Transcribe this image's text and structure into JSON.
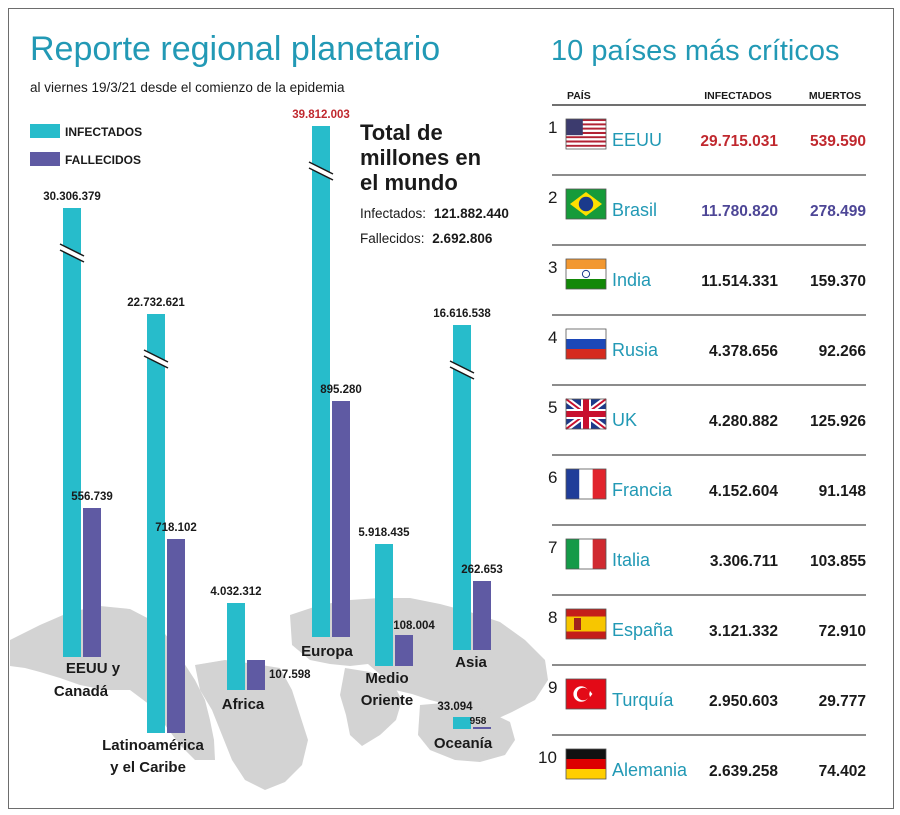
{
  "header": {
    "title": "Reporte regional planetario",
    "subtitle": "al viernes 19/3/21 desde el comienzo de la epidemia",
    "right_title": "10 países más críticos"
  },
  "legend": {
    "infected": "INFECTADOS",
    "deaths": "FALLECIDOS"
  },
  "totals": {
    "heading_lines": [
      "Total de",
      "millones en",
      "el mundo"
    ],
    "infected_label": "Infectados:",
    "infected_value": "121.882.440",
    "deaths_label": "Fallecidos:",
    "deaths_value": "2.692.806"
  },
  "colors": {
    "title": "#2299b5",
    "infected": "#27bccb",
    "deaths": "#5f5aa3",
    "highlight_red": "#c0282e",
    "highlight_purple": "#4d4696",
    "map": "#d3d3d3",
    "text": "#1a1a1a"
  },
  "chart_data": {
    "type": "bar",
    "series": [
      {
        "name": "INFECTADOS",
        "values": [
          30306379,
          22732621,
          4032312,
          39812003,
          5918435,
          16616538,
          33094
        ]
      },
      {
        "name": "FALLECIDOS",
        "values": [
          556739,
          718102,
          107598,
          895280,
          108004,
          262653,
          958
        ]
      }
    ],
    "regions": [
      {
        "label_lines": [
          "EEUU y",
          "Canadá"
        ],
        "infected": "30.306.379",
        "deaths": "556.739",
        "infected_broken": true
      },
      {
        "label_lines": [
          "Latinoamérica",
          "y el Caribe"
        ],
        "infected": "22.732.621",
        "deaths": "718.102",
        "infected_broken": true
      },
      {
        "label_lines": [
          "Africa"
        ],
        "infected": "4.032.312",
        "deaths": "107.598",
        "infected_broken": false
      },
      {
        "label_lines": [
          "Europa"
        ],
        "infected": "39.812.003",
        "deaths": "895.280",
        "infected_broken": true
      },
      {
        "label_lines": [
          "Medio",
          "Oriente"
        ],
        "infected": "5.918.435",
        "deaths": "108.004",
        "infected_broken": false
      },
      {
        "label_lines": [
          "Asia"
        ],
        "infected": "16.616.538",
        "deaths": "262.653",
        "infected_broken": true
      },
      {
        "label_lines": [
          "Oceanía"
        ],
        "infected": "33.094",
        "deaths": "958",
        "infected_broken": false
      }
    ]
  },
  "table": {
    "headers": {
      "country": "PAÍS",
      "infected": "INFECTADOS",
      "deaths": "MUERTOS"
    },
    "rows": [
      {
        "rank": "1",
        "flag": "usa-flag-icon",
        "country": "EEUU",
        "infected": "29.715.031",
        "deaths": "539.590"
      },
      {
        "rank": "2",
        "flag": "brazil-flag-icon",
        "country": "Brasil",
        "infected": "11.780.820",
        "deaths": "278.499"
      },
      {
        "rank": "3",
        "flag": "india-flag-icon",
        "country": "India",
        "infected": "11.514.331",
        "deaths": "159.370"
      },
      {
        "rank": "4",
        "flag": "russia-flag-icon",
        "country": "Rusia",
        "infected": "4.378.656",
        "deaths": "92.266"
      },
      {
        "rank": "5",
        "flag": "uk-flag-icon",
        "country": "UK",
        "infected": "4.280.882",
        "deaths": "125.926"
      },
      {
        "rank": "6",
        "flag": "france-flag-icon",
        "country": "Francia",
        "infected": "4.152.604",
        "deaths": "91.148"
      },
      {
        "rank": "7",
        "flag": "italy-flag-icon",
        "country": "Italia",
        "infected": "3.306.711",
        "deaths": "103.855"
      },
      {
        "rank": "8",
        "flag": "spain-flag-icon",
        "country": "España",
        "infected": "3.121.332",
        "deaths": "72.910"
      },
      {
        "rank": "9",
        "flag": "turkey-flag-icon",
        "country": "Turquía",
        "infected": "2.950.603",
        "deaths": "29.777"
      },
      {
        "rank": "10",
        "flag": "germany-flag-icon",
        "country": "Alemania",
        "infected": "2.639.258",
        "deaths": "74.402"
      }
    ]
  }
}
